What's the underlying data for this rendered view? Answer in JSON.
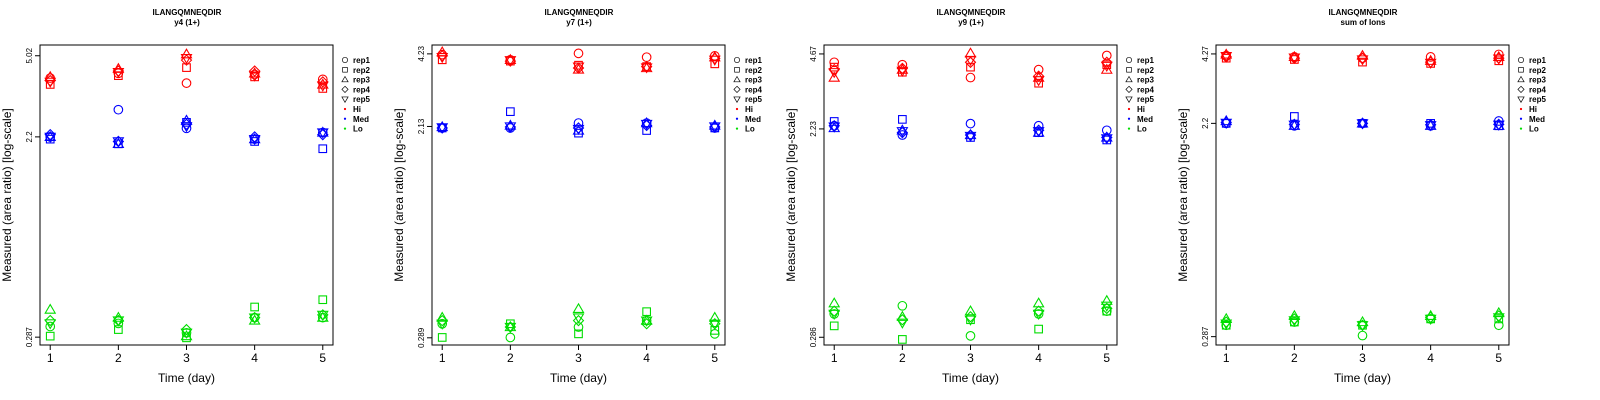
{
  "chart_data": [
    {
      "type": "scatter",
      "title": "ILANGQMNEQDIR",
      "subtitle": "y4 (1+)",
      "xlabel": "Time (day)",
      "ylabel": "Measured (area ratio) [log-scale]",
      "x": [
        1,
        2,
        3,
        4,
        5
      ],
      "xlim": [
        0.85,
        5.15
      ],
      "ylim": [
        0.265,
        5.6
      ],
      "y_ticks": [
        0.287,
        2.2,
        5.02
      ],
      "y_tick_labels": [
        "0.287",
        "2.2",
        "5.02"
      ],
      "series": [
        {
          "name": "rep1",
          "level": "Hi",
          "values": [
            4.0,
            4.2,
            3.8,
            4.15,
            3.95
          ]
        },
        {
          "name": "rep2",
          "level": "Hi",
          "values": [
            3.75,
            4.1,
            4.45,
            4.05,
            3.6
          ]
        },
        {
          "name": "rep3",
          "level": "Hi",
          "values": [
            4.05,
            4.4,
            5.1,
            4.2,
            3.75
          ]
        },
        {
          "name": "rep4",
          "level": "Hi",
          "values": [
            3.9,
            4.3,
            4.8,
            4.3,
            3.85
          ]
        },
        {
          "name": "rep5",
          "level": "Hi",
          "values": [
            3.85,
            4.25,
            4.9,
            4.1,
            3.7
          ]
        },
        {
          "name": "rep1",
          "level": "Med",
          "values": [
            2.2,
            2.9,
            2.4,
            2.15,
            2.3
          ]
        },
        {
          "name": "rep2",
          "level": "Med",
          "values": [
            2.15,
            2.05,
            2.55,
            2.1,
            1.95
          ]
        },
        {
          "name": "rep3",
          "level": "Med",
          "values": [
            2.2,
            2.05,
            2.6,
            2.15,
            2.3
          ]
        },
        {
          "name": "rep4",
          "level": "Med",
          "values": [
            2.25,
            2.1,
            2.5,
            2.2,
            2.25
          ]
        },
        {
          "name": "rep5",
          "level": "Med",
          "values": [
            2.2,
            2.1,
            2.45,
            2.15,
            2.3
          ]
        },
        {
          "name": "rep1",
          "level": "Lo",
          "values": [
            0.32,
            0.33,
            0.3,
            0.35,
            0.35
          ]
        },
        {
          "name": "rep2",
          "level": "Lo",
          "values": [
            0.29,
            0.31,
            0.285,
            0.39,
            0.42
          ]
        },
        {
          "name": "rep3",
          "level": "Lo",
          "values": [
            0.38,
            0.35,
            0.29,
            0.34,
            0.35
          ]
        },
        {
          "name": "rep4",
          "level": "Lo",
          "values": [
            0.34,
            0.34,
            0.31,
            0.35,
            0.36
          ]
        },
        {
          "name": "rep5",
          "level": "Lo",
          "values": [
            0.33,
            0.34,
            0.3,
            0.35,
            0.36
          ]
        }
      ],
      "legend": [
        "rep1",
        "rep2",
        "rep3",
        "rep4",
        "rep5",
        "Hi",
        "Med",
        "Lo"
      ],
      "legend_position": "right"
    },
    {
      "type": "scatter",
      "title": "ILANGQMNEQDIR",
      "subtitle": "y7 (1+)",
      "xlabel": "Time (day)",
      "ylabel": "Measured (area ratio) [log-scale]",
      "x": [
        1,
        2,
        3,
        4,
        5
      ],
      "xlim": [
        0.85,
        5.15
      ],
      "ylim": [
        0.27,
        4.6
      ],
      "y_ticks": [
        0.289,
        2.13,
        4.23
      ],
      "y_tick_labels": [
        "0.289",
        "2.13",
        "4.23"
      ],
      "series": [
        {
          "name": "rep1",
          "level": "Hi",
          "values": [
            4.2,
            4.0,
            4.25,
            4.1,
            4.15
          ]
        },
        {
          "name": "rep2",
          "level": "Hi",
          "values": [
            4.0,
            3.95,
            3.8,
            3.75,
            3.85
          ]
        },
        {
          "name": "rep3",
          "level": "Hi",
          "values": [
            4.3,
            4.0,
            3.65,
            3.7,
            4.1
          ]
        },
        {
          "name": "rep4",
          "level": "Hi",
          "values": [
            4.15,
            3.95,
            3.7,
            3.75,
            4.05
          ]
        },
        {
          "name": "rep5",
          "level": "Hi",
          "values": [
            4.1,
            3.98,
            3.75,
            3.72,
            4.0
          ]
        },
        {
          "name": "rep1",
          "level": "Med",
          "values": [
            2.1,
            2.1,
            2.2,
            2.2,
            2.1
          ]
        },
        {
          "name": "rep2",
          "level": "Med",
          "values": [
            2.1,
            2.45,
            2.0,
            2.05,
            2.1
          ]
        },
        {
          "name": "rep3",
          "level": "Med",
          "values": [
            2.12,
            2.15,
            2.05,
            2.2,
            2.15
          ]
        },
        {
          "name": "rep4",
          "level": "Med",
          "values": [
            2.1,
            2.12,
            2.1,
            2.15,
            2.12
          ]
        },
        {
          "name": "rep5",
          "level": "Med",
          "values": [
            2.11,
            2.13,
            2.08,
            2.18,
            2.13
          ]
        },
        {
          "name": "rep1",
          "level": "Lo",
          "values": [
            0.33,
            0.29,
            0.32,
            0.34,
            0.3
          ]
        },
        {
          "name": "rep2",
          "level": "Lo",
          "values": [
            0.29,
            0.33,
            0.3,
            0.37,
            0.31
          ]
        },
        {
          "name": "rep3",
          "level": "Lo",
          "values": [
            0.35,
            0.32,
            0.38,
            0.34,
            0.35
          ]
        },
        {
          "name": "rep4",
          "level": "Lo",
          "values": [
            0.34,
            0.32,
            0.34,
            0.33,
            0.33
          ]
        },
        {
          "name": "rep5",
          "level": "Lo",
          "values": [
            0.33,
            0.32,
            0.35,
            0.34,
            0.33
          ]
        }
      ],
      "legend": [
        "rep1",
        "rep2",
        "rep3",
        "rep4",
        "rep5",
        "Hi",
        "Med",
        "Lo"
      ],
      "legend_position": "right"
    },
    {
      "type": "scatter",
      "title": "ILANGQMNEQDIR",
      "subtitle": "y9 (1+)",
      "xlabel": "Time (day)",
      "ylabel": "Measured (area ratio) [log-scale]",
      "x": [
        1,
        2,
        3,
        4,
        5
      ],
      "xlim": [
        0.85,
        5.15
      ],
      "ylim": [
        0.265,
        5.1
      ],
      "y_ticks": [
        0.286,
        2.23,
        4.67
      ],
      "y_tick_labels": [
        "0.286",
        "2.23",
        "4.67"
      ],
      "series": [
        {
          "name": "rep1",
          "level": "Hi",
          "values": [
            4.3,
            4.2,
            3.7,
            4.0,
            4.6
          ]
        },
        {
          "name": "rep2",
          "level": "Hi",
          "values": [
            4.1,
            3.9,
            4.1,
            3.5,
            4.2
          ]
        },
        {
          "name": "rep3",
          "level": "Hi",
          "values": [
            3.7,
            4.0,
            4.7,
            3.7,
            4.0
          ]
        },
        {
          "name": "rep4",
          "level": "Hi",
          "values": [
            4.0,
            4.05,
            4.3,
            3.75,
            4.3
          ]
        },
        {
          "name": "rep5",
          "level": "Hi",
          "values": [
            3.9,
            3.95,
            4.4,
            3.6,
            4.15
          ]
        },
        {
          "name": "rep1",
          "level": "Med",
          "values": [
            2.3,
            2.1,
            2.35,
            2.3,
            2.2
          ]
        },
        {
          "name": "rep2",
          "level": "Med",
          "values": [
            2.4,
            2.45,
            2.05,
            2.15,
            2.0
          ]
        },
        {
          "name": "rep3",
          "level": "Med",
          "values": [
            2.25,
            2.2,
            2.1,
            2.15,
            2.05
          ]
        },
        {
          "name": "rep4",
          "level": "Med",
          "values": [
            2.3,
            2.15,
            2.1,
            2.2,
            2.05
          ]
        },
        {
          "name": "rep5",
          "level": "Med",
          "values": [
            2.28,
            2.18,
            2.08,
            2.18,
            2.03
          ]
        },
        {
          "name": "rep1",
          "level": "Lo",
          "values": [
            0.36,
            0.39,
            0.29,
            0.36,
            0.37
          ]
        },
        {
          "name": "rep2",
          "level": "Lo",
          "values": [
            0.32,
            0.28,
            0.34,
            0.31,
            0.37
          ]
        },
        {
          "name": "rep3",
          "level": "Lo",
          "values": [
            0.4,
            0.35,
            0.37,
            0.4,
            0.41
          ]
        },
        {
          "name": "rep4",
          "level": "Lo",
          "values": [
            0.37,
            0.34,
            0.35,
            0.37,
            0.38
          ]
        },
        {
          "name": "rep5",
          "level": "Lo",
          "values": [
            0.36,
            0.33,
            0.34,
            0.36,
            0.39
          ]
        }
      ],
      "legend": [
        "rep1",
        "rep2",
        "rep3",
        "rep4",
        "rep5",
        "Hi",
        "Med",
        "Lo"
      ],
      "legend_position": "right"
    },
    {
      "type": "scatter",
      "title": "ILANGQMNEQDIR",
      "subtitle": "sum of Ions",
      "xlabel": "Time (day)",
      "ylabel": "Measured (area ratio) [log-scale]",
      "x": [
        1,
        2,
        3,
        4,
        5
      ],
      "xlim": [
        0.85,
        5.15
      ],
      "ylim": [
        0.265,
        4.65
      ],
      "y_ticks": [
        0.287,
        2.2,
        4.27
      ],
      "y_tick_labels": [
        "0.287",
        "2.2",
        "4.27"
      ],
      "series": [
        {
          "name": "rep1",
          "level": "Hi",
          "values": [
            4.2,
            4.15,
            4.1,
            4.15,
            4.25
          ]
        },
        {
          "name": "rep2",
          "level": "Hi",
          "values": [
            4.1,
            4.05,
            3.95,
            3.9,
            4.0
          ]
        },
        {
          "name": "rep3",
          "level": "Hi",
          "values": [
            4.25,
            4.15,
            4.2,
            4.0,
            4.15
          ]
        },
        {
          "name": "rep4",
          "level": "Hi",
          "values": [
            4.15,
            4.1,
            4.1,
            3.95,
            4.1
          ]
        },
        {
          "name": "rep5",
          "level": "Hi",
          "values": [
            4.18,
            4.12,
            4.05,
            3.92,
            4.08
          ]
        },
        {
          "name": "rep1",
          "level": "Med",
          "values": [
            2.2,
            2.15,
            2.2,
            2.15,
            2.25
          ]
        },
        {
          "name": "rep2",
          "level": "Med",
          "values": [
            2.2,
            2.35,
            2.2,
            2.2,
            2.15
          ]
        },
        {
          "name": "rep3",
          "level": "Med",
          "values": [
            2.25,
            2.15,
            2.2,
            2.15,
            2.15
          ]
        },
        {
          "name": "rep4",
          "level": "Med",
          "values": [
            2.22,
            2.18,
            2.2,
            2.17,
            2.18
          ]
        },
        {
          "name": "rep5",
          "level": "Med",
          "values": [
            2.21,
            2.17,
            2.2,
            2.16,
            2.17
          ]
        },
        {
          "name": "rep1",
          "level": "Lo",
          "values": [
            0.32,
            0.33,
            0.29,
            0.34,
            0.32
          ]
        },
        {
          "name": "rep2",
          "level": "Lo",
          "values": [
            0.32,
            0.33,
            0.32,
            0.34,
            0.34
          ]
        },
        {
          "name": "rep3",
          "level": "Lo",
          "values": [
            0.34,
            0.35,
            0.33,
            0.35,
            0.36
          ]
        },
        {
          "name": "rep4",
          "level": "Lo",
          "values": [
            0.33,
            0.34,
            0.32,
            0.345,
            0.35
          ]
        },
        {
          "name": "rep5",
          "level": "Lo",
          "values": [
            0.325,
            0.335,
            0.32,
            0.34,
            0.345
          ]
        }
      ],
      "legend": [
        "rep1",
        "rep2",
        "rep3",
        "rep4",
        "rep5",
        "Hi",
        "Med",
        "Lo"
      ],
      "legend_position": "right"
    }
  ],
  "colors": {
    "Hi": "#ff0000",
    "Med": "#0000ff",
    "Lo": "#00dd00"
  },
  "legend_items": [
    {
      "label": "rep1",
      "shape": "circle"
    },
    {
      "label": "rep2",
      "shape": "square"
    },
    {
      "label": "rep3",
      "shape": "triangle"
    },
    {
      "label": "rep4",
      "shape": "diamond"
    },
    {
      "label": "rep5",
      "shape": "triangle-down"
    },
    {
      "label": "Hi",
      "shape": "dot",
      "level": "Hi"
    },
    {
      "label": "Med",
      "shape": "dot",
      "level": "Med"
    },
    {
      "label": "Lo",
      "shape": "dot",
      "level": "Lo"
    }
  ]
}
